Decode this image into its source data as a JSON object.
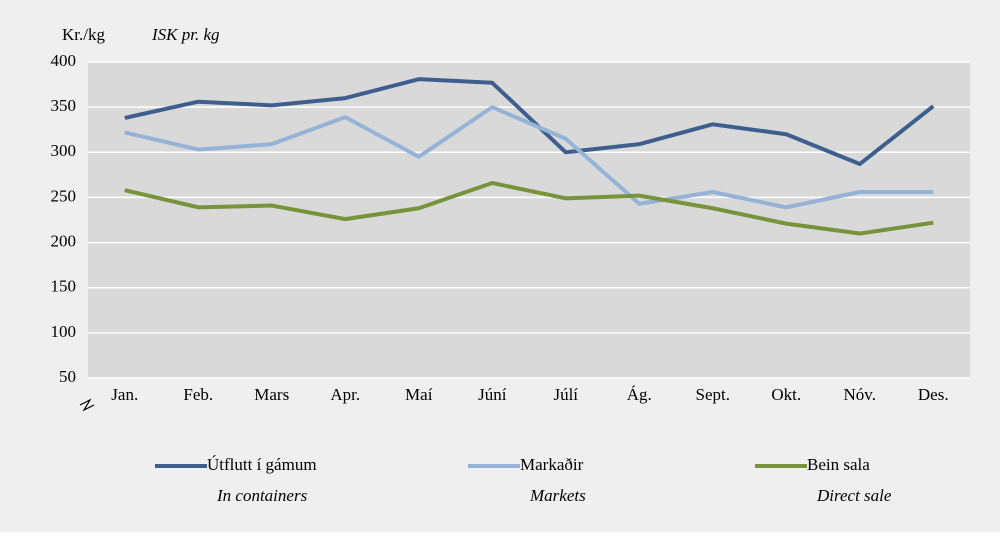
{
  "chart_data": {
    "type": "line",
    "ylabel": "Kr./kg",
    "ylabel_en": "ISK pr. kg",
    "categories": [
      "Jan.",
      "Feb.",
      "Mars",
      "Apr.",
      "Maí",
      "Júní",
      "Júlí",
      "Ág.",
      "Sept.",
      "Okt.",
      "Nóv.",
      "Des."
    ],
    "series": [
      {
        "name": "Útflutt í gámum",
        "name_en": "In containers",
        "color": "#3e5f8e",
        "values": [
          338,
          356,
          352,
          360,
          381,
          377,
          300,
          309,
          331,
          320,
          287,
          351
        ]
      },
      {
        "name": "Markaðir",
        "name_en": "Markets",
        "color": "#95b3d7",
        "values": [
          322,
          303,
          309,
          339,
          295,
          350,
          315,
          243,
          256,
          239,
          256,
          256
        ]
      },
      {
        "name": "Bein sala",
        "name_en": "Direct sale",
        "color": "#77933c",
        "values": [
          258,
          239,
          241,
          226,
          238,
          266,
          249,
          252,
          238,
          221,
          210,
          222
        ]
      }
    ],
    "ylim": [
      50,
      400
    ],
    "yticks": [
      50,
      100,
      150,
      200,
      250,
      300,
      350,
      400
    ],
    "grid": true,
    "legend": "bottom"
  }
}
